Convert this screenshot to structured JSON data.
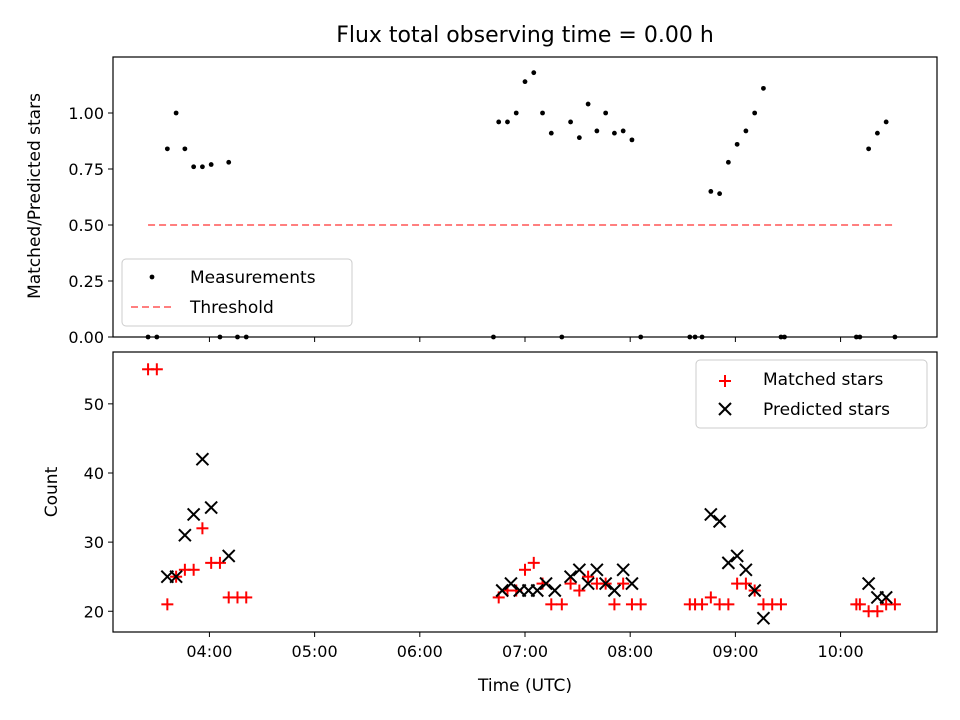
{
  "chart_data": [
    {
      "type": "scatter",
      "title": "Flux total observing time = 0.00 h",
      "ylabel": "Matched/Predicted stars",
      "xlabel": "",
      "xlim": [
        "03:05",
        "10:55"
      ],
      "ylim": [
        0,
        1.25
      ],
      "yticks": [
        0.0,
        0.25,
        0.5,
        0.75,
        1.0
      ],
      "ytick_labels": [
        "0.00",
        "0.25",
        "0.50",
        "0.75",
        "1.00"
      ],
      "xticks": [
        "04:00",
        "05:00",
        "06:00",
        "07:00",
        "08:00",
        "09:00",
        "10:00"
      ],
      "xtick_labels_shown": false,
      "grid": false,
      "legend_position": "lower-left",
      "series": [
        {
          "name": "Measurements",
          "marker": "dot",
          "color": "#000000",
          "points": [
            [
              "03:25",
              0.0
            ],
            [
              "03:30",
              0.0
            ],
            [
              "03:36",
              0.84
            ],
            [
              "03:41",
              1.0
            ],
            [
              "03:46",
              0.84
            ],
            [
              "03:51",
              0.76
            ],
            [
              "03:56",
              0.76
            ],
            [
              "04:01",
              0.77
            ],
            [
              "04:06",
              0.0
            ],
            [
              "04:11",
              0.78
            ],
            [
              "04:16",
              0.0
            ],
            [
              "04:21",
              0.0
            ],
            [
              "06:42",
              0.0
            ],
            [
              "06:45",
              0.96
            ],
            [
              "06:50",
              0.96
            ],
            [
              "06:55",
              1.0
            ],
            [
              "07:00",
              1.14
            ],
            [
              "07:05",
              1.18
            ],
            [
              "07:10",
              1.0
            ],
            [
              "07:15",
              0.91
            ],
            [
              "07:21",
              0.0
            ],
            [
              "07:26",
              0.96
            ],
            [
              "07:31",
              0.89
            ],
            [
              "07:36",
              1.04
            ],
            [
              "07:41",
              0.92
            ],
            [
              "07:46",
              1.0
            ],
            [
              "07:51",
              0.91
            ],
            [
              "07:56",
              0.92
            ],
            [
              "08:01",
              0.88
            ],
            [
              "08:06",
              0.0
            ],
            [
              "08:34",
              0.0
            ],
            [
              "08:37",
              0.0
            ],
            [
              "08:41",
              0.0
            ],
            [
              "08:46",
              0.65
            ],
            [
              "08:51",
              0.64
            ],
            [
              "08:56",
              0.78
            ],
            [
              "09:01",
              0.86
            ],
            [
              "09:06",
              0.92
            ],
            [
              "09:11",
              1.0
            ],
            [
              "09:16",
              1.11
            ],
            [
              "09:26",
              0.0
            ],
            [
              "09:28",
              0.0
            ],
            [
              "10:09",
              0.0
            ],
            [
              "10:11",
              0.0
            ],
            [
              "10:16",
              0.84
            ],
            [
              "10:21",
              0.91
            ],
            [
              "10:26",
              0.96
            ],
            [
              "10:31",
              0.0
            ]
          ]
        },
        {
          "name": "Threshold",
          "marker": "dashed-line",
          "color": "#ff7f7f",
          "points": [
            [
              "03:25",
              0.5
            ],
            [
              "10:31",
              0.5
            ]
          ]
        }
      ]
    },
    {
      "type": "scatter",
      "title": "",
      "ylabel": "Count",
      "xlabel": "Time (UTC)",
      "xlim": [
        "03:05",
        "10:55"
      ],
      "ylim": [
        17,
        57.5
      ],
      "yticks": [
        20,
        30,
        40,
        50
      ],
      "ytick_labels": [
        "20",
        "30",
        "40",
        "50"
      ],
      "xticks": [
        "04:00",
        "05:00",
        "06:00",
        "07:00",
        "08:00",
        "09:00",
        "10:00"
      ],
      "xtick_labels": [
        "04:00",
        "05:00",
        "06:00",
        "07:00",
        "08:00",
        "09:00",
        "10:00"
      ],
      "grid": false,
      "legend_position": "upper-right",
      "series": [
        {
          "name": "Matched stars",
          "marker": "plus",
          "color": "#ff0000",
          "points": [
            [
              "03:25",
              55
            ],
            [
              "03:30",
              55
            ],
            [
              "03:36",
              21
            ],
            [
              "03:41",
              25
            ],
            [
              "03:46",
              26
            ],
            [
              "03:51",
              26
            ],
            [
              "03:56",
              32
            ],
            [
              "04:01",
              27
            ],
            [
              "04:06",
              27
            ],
            [
              "04:11",
              22
            ],
            [
              "04:16",
              22
            ],
            [
              "04:21",
              22
            ],
            [
              "06:45",
              22
            ],
            [
              "06:50",
              23
            ],
            [
              "06:55",
              23
            ],
            [
              "07:00",
              26
            ],
            [
              "07:05",
              27
            ],
            [
              "07:10",
              24
            ],
            [
              "07:15",
              21
            ],
            [
              "07:21",
              21
            ],
            [
              "07:26",
              24
            ],
            [
              "07:31",
              23
            ],
            [
              "07:36",
              25
            ],
            [
              "07:41",
              24
            ],
            [
              "07:46",
              24
            ],
            [
              "07:51",
              21
            ],
            [
              "07:56",
              24
            ],
            [
              "08:01",
              21
            ],
            [
              "08:06",
              21
            ],
            [
              "08:34",
              21
            ],
            [
              "08:37",
              21
            ],
            [
              "08:41",
              21
            ],
            [
              "08:46",
              22
            ],
            [
              "08:51",
              21
            ],
            [
              "08:56",
              21
            ],
            [
              "09:01",
              24
            ],
            [
              "09:06",
              24
            ],
            [
              "09:11",
              23
            ],
            [
              "09:16",
              21
            ],
            [
              "09:21",
              21
            ],
            [
              "09:26",
              21
            ],
            [
              "10:09",
              21
            ],
            [
              "10:11",
              21
            ],
            [
              "10:16",
              20
            ],
            [
              "10:21",
              20
            ],
            [
              "10:26",
              21
            ],
            [
              "10:31",
              21
            ]
          ]
        },
        {
          "name": "Predicted stars",
          "marker": "x",
          "color": "#000000",
          "points": [
            [
              "03:36",
              25
            ],
            [
              "03:41",
              25
            ],
            [
              "03:46",
              31
            ],
            [
              "03:51",
              34
            ],
            [
              "03:56",
              42
            ],
            [
              "04:01",
              35
            ],
            [
              "04:11",
              28
            ],
            [
              "06:47",
              23
            ],
            [
              "06:52",
              24
            ],
            [
              "06:57",
              23
            ],
            [
              "07:02",
              23
            ],
            [
              "07:07",
              23
            ],
            [
              "07:12",
              24
            ],
            [
              "07:17",
              23
            ],
            [
              "07:26",
              25
            ],
            [
              "07:31",
              26
            ],
            [
              "07:36",
              24
            ],
            [
              "07:41",
              26
            ],
            [
              "07:46",
              24
            ],
            [
              "07:51",
              23
            ],
            [
              "07:56",
              26
            ],
            [
              "08:01",
              24
            ],
            [
              "08:46",
              34
            ],
            [
              "08:51",
              33
            ],
            [
              "08:56",
              27
            ],
            [
              "09:01",
              28
            ],
            [
              "09:06",
              26
            ],
            [
              "09:11",
              23
            ],
            [
              "09:16",
              19
            ],
            [
              "10:16",
              24
            ],
            [
              "10:21",
              22
            ],
            [
              "10:26",
              22
            ]
          ]
        }
      ]
    }
  ]
}
